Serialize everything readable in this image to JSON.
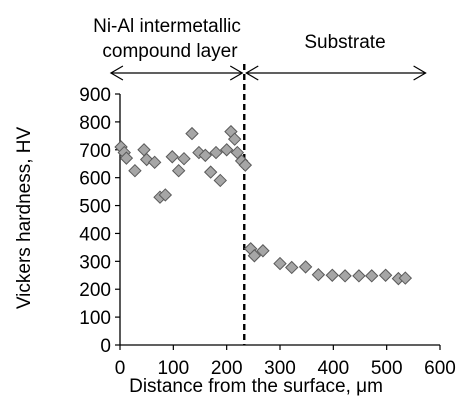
{
  "chart_data": {
    "type": "scatter",
    "xlabel": "Distance from the surface, μm",
    "ylabel": "Vickers hardness, HV",
    "xlim": [
      0,
      600
    ],
    "ylim": [
      0,
      900
    ],
    "xticks": [
      "0",
      "100",
      "200",
      "300",
      "400",
      "500",
      "600"
    ],
    "yticks": [
      "0",
      "100",
      "200",
      "300",
      "400",
      "500",
      "600",
      "700",
      "800",
      "900"
    ],
    "grid": false,
    "marker": "diamond",
    "marker_fill": "#A6A6A6",
    "marker_stroke": "#595959",
    "boundary_x": 233,
    "regions": [
      {
        "label_lines": [
          "Ni-Al intermetallic",
          "compound layer"
        ],
        "from": -17,
        "to": 233
      },
      {
        "label_lines": [
          "Substrate"
        ],
        "from": 233,
        "to": 573
      }
    ],
    "points": [
      {
        "x": 2,
        "y": 710
      },
      {
        "x": 8,
        "y": 690
      },
      {
        "x": 12,
        "y": 670
      },
      {
        "x": 28,
        "y": 625
      },
      {
        "x": 45,
        "y": 700
      },
      {
        "x": 50,
        "y": 665
      },
      {
        "x": 65,
        "y": 655
      },
      {
        "x": 75,
        "y": 530
      },
      {
        "x": 85,
        "y": 538
      },
      {
        "x": 98,
        "y": 675
      },
      {
        "x": 110,
        "y": 625
      },
      {
        "x": 120,
        "y": 668
      },
      {
        "x": 135,
        "y": 758
      },
      {
        "x": 148,
        "y": 690
      },
      {
        "x": 160,
        "y": 680
      },
      {
        "x": 170,
        "y": 620
      },
      {
        "x": 180,
        "y": 690
      },
      {
        "x": 188,
        "y": 590
      },
      {
        "x": 200,
        "y": 700
      },
      {
        "x": 208,
        "y": 765
      },
      {
        "x": 215,
        "y": 738
      },
      {
        "x": 220,
        "y": 690
      },
      {
        "x": 228,
        "y": 660
      },
      {
        "x": 235,
        "y": 645
      },
      {
        "x": 245,
        "y": 345
      },
      {
        "x": 252,
        "y": 320
      },
      {
        "x": 268,
        "y": 338
      },
      {
        "x": 300,
        "y": 292
      },
      {
        "x": 322,
        "y": 278
      },
      {
        "x": 348,
        "y": 280
      },
      {
        "x": 372,
        "y": 252
      },
      {
        "x": 398,
        "y": 250
      },
      {
        "x": 422,
        "y": 248
      },
      {
        "x": 448,
        "y": 248
      },
      {
        "x": 472,
        "y": 248
      },
      {
        "x": 498,
        "y": 250
      },
      {
        "x": 522,
        "y": 238
      },
      {
        "x": 535,
        "y": 240
      }
    ]
  }
}
